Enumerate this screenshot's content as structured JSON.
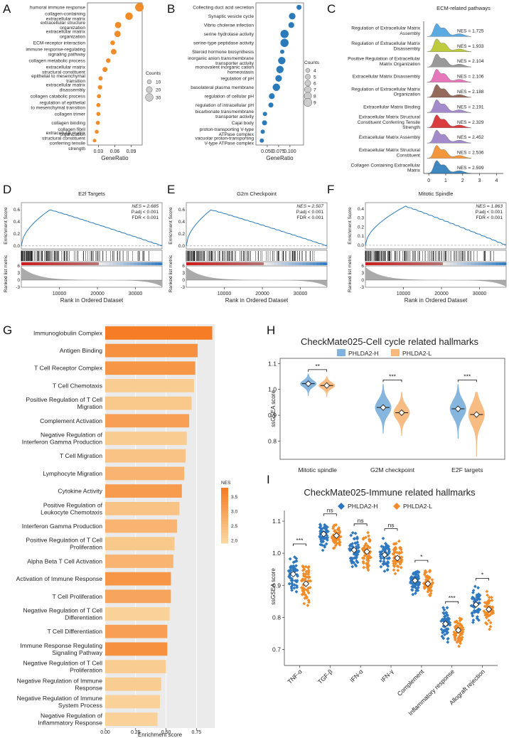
{
  "panel_letters": [
    "A",
    "B",
    "C",
    "D",
    "E",
    "F",
    "G",
    "H",
    "I"
  ],
  "chart_data": [
    {
      "id": "A",
      "type": "scatter",
      "xlabel": "GeneRatio",
      "xticks": [
        0.03,
        0.06,
        0.09
      ],
      "xlim": [
        0.01,
        0.11
      ],
      "legend_title": "Counts",
      "legend_sizes": [
        10,
        20,
        30
      ],
      "legend_labels": [
        "10",
        "20",
        "30"
      ],
      "color": "#f28c28",
      "terms": [
        {
          "label": "humoral immune response",
          "x": 0.105,
          "count": 35
        },
        {
          "label": "collagen-containing extracellular matrix",
          "x": 0.086,
          "count": 29
        },
        {
          "label": "extracellular structure organization",
          "x": 0.066,
          "count": 22
        },
        {
          "label": "extracellular matrix organization",
          "x": 0.065,
          "count": 22
        },
        {
          "label": "ECM-receptor interaction",
          "x": 0.056,
          "count": 12
        },
        {
          "label": "immune response-regulating signaling pathway",
          "x": 0.058,
          "count": 18
        },
        {
          "label": "collagen metabolic process",
          "x": 0.048,
          "count": 12
        },
        {
          "label": "extracellular matrix structural constituent",
          "x": 0.042,
          "count": 14
        },
        {
          "label": "epithelial to mesenchymal transition",
          "x": 0.034,
          "count": 10
        },
        {
          "label": "extracellular matrix disassembly",
          "x": 0.033,
          "count": 11
        },
        {
          "label": "collagen catabolic process",
          "x": 0.031,
          "count": 9
        },
        {
          "label": "regulation of epithelial to mesenchymal transition",
          "x": 0.03,
          "count": 9
        },
        {
          "label": "collagen trimer",
          "x": 0.03,
          "count": 9
        },
        {
          "label": "collagen binding",
          "x": 0.029,
          "count": 9
        },
        {
          "label": "collagen fibril organization",
          "x": 0.027,
          "count": 8
        },
        {
          "label": "extracellular matrix structural constituent conferring tensile strength",
          "x": 0.023,
          "count": 6
        }
      ]
    },
    {
      "id": "B",
      "type": "scatter",
      "xlabel": "GeneRatio",
      "xticks": [
        0.05,
        0.075,
        0.1
      ],
      "xtick_labels": [
        "0.050",
        "0.075",
        "0.100"
      ],
      "xlim": [
        0.025,
        0.13
      ],
      "legend_title": "Counts",
      "legend_sizes": [
        4,
        5,
        6,
        7,
        8,
        9
      ],
      "legend_labels": [
        "4",
        "5",
        "6",
        "7",
        "8",
        "9"
      ],
      "color": "#2b7bba",
      "terms": [
        {
          "label": "Collecting duct acid secretion",
          "x": 0.12,
          "count": 5
        },
        {
          "label": "Synaptic vesicle cycle",
          "x": 0.105,
          "count": 7
        },
        {
          "label": "Vibrio cholerae infection",
          "x": 0.103,
          "count": 6
        },
        {
          "label": "serine hydrolase activity",
          "x": 0.088,
          "count": 9
        },
        {
          "label": "serine-type peptidase activity",
          "x": 0.088,
          "count": 9
        },
        {
          "label": "Steroid hormone biosynthesis",
          "x": 0.083,
          "count": 4
        },
        {
          "label": "inorganic anion transmembrane transporter activity",
          "x": 0.082,
          "count": 8
        },
        {
          "label": "monovalent inorganic cation homeostasis",
          "x": 0.078,
          "count": 8
        },
        {
          "label": "regulation of pH",
          "x": 0.075,
          "count": 7
        },
        {
          "label": "basolateral plasma membrane",
          "x": 0.07,
          "count": 8
        },
        {
          "label": "regulation of cellular pH",
          "x": 0.06,
          "count": 6
        },
        {
          "label": "regulation of intracellular pH",
          "x": 0.058,
          "count": 5
        },
        {
          "label": "bicarbonate transmembrane transporter activity",
          "x": 0.045,
          "count": 4
        },
        {
          "label": "Cajal body",
          "x": 0.044,
          "count": 5
        },
        {
          "label": "proton-transporting V-type ATPase complex",
          "x": 0.04,
          "count": 4
        },
        {
          "label": "vacuolar proton-transporting V-type ATPase complex",
          "x": 0.038,
          "count": 4
        }
      ]
    },
    {
      "id": "C",
      "type": "ridgeline",
      "title": "ECM-related pathways",
      "xticks": [
        0,
        1,
        2,
        3,
        4
      ],
      "xlim": [
        -0.3,
        4.4
      ],
      "ridges": [
        {
          "label": "Regulation of Extracellular Matrix Assembly",
          "nes": "1.725",
          "color": "#4aa3df"
        },
        {
          "label": "Regulation of Extracellular Matrix Disassembly",
          "nes": "1.933",
          "color": "#b8c62a"
        },
        {
          "label": "Positive Regulation of Extracellular Matrix Organization",
          "nes": "2.104",
          "color": "#8e8e8e"
        },
        {
          "label": "Extracellular Matrix Disassembly",
          "nes": "2.106",
          "color": "#e469b4"
        },
        {
          "label": "Regulation of Extracellular Matrix Organization",
          "nes": "2.188",
          "color": "#8b5a4a"
        },
        {
          "label": "Extracellular Matrix Binding",
          "nes": "2.191",
          "color": "#9a7fc6"
        },
        {
          "label": "Extracellular Matrix Structural Constituent Conferring Tensile Strength",
          "nes": "2.329",
          "color": "#d8282c"
        },
        {
          "label": "Extracellular Matrix Assembly",
          "nes": "2.452",
          "color": "#9a7fc6"
        },
        {
          "label": "Extracellular Matrix Structural Constituent",
          "nes": "2.536",
          "color": "#f28c28"
        },
        {
          "label": "Collagen Containing Extracellular Matrix",
          "nes": "2.599",
          "color": "#2b7bba"
        }
      ]
    },
    {
      "id": "D",
      "type": "gsea",
      "title": "E2f Targets",
      "nes": "NES = 2.685",
      "padj": "P.adj < 0.001",
      "fdr": "FDR < 0.001",
      "ylabel_top": "Enrichment Score",
      "ylabel_bottom": "Ranked list metric",
      "xlabel": "Rank in Ordered Dataset",
      "xticks": [
        10000,
        20000,
        30000
      ],
      "xmax": 37000,
      "yticks": [
        0.0,
        0.2,
        0.4,
        0.6
      ],
      "ylim": [
        -0.05,
        0.72
      ],
      "peak_rank": 7500,
      "peak": 0.6
    },
    {
      "id": "E",
      "type": "gsea",
      "title": "G2m Checkpoint",
      "nes": "NES = 2.507",
      "padj": "P.adj < 0.001",
      "fdr": "FDR < 0.001",
      "ylabel_top": "Enrichment Score",
      "ylabel_bottom": "Ranked list metric",
      "xlabel": "Rank in Ordered Dataset",
      "xticks": [
        10000,
        20000,
        30000
      ],
      "xmax": 37000,
      "yticks": [
        0.0,
        0.2,
        0.4,
        0.6
      ],
      "ylim": [
        -0.05,
        0.72
      ],
      "peak_rank": 6500,
      "peak": 0.6
    },
    {
      "id": "F",
      "type": "gsea",
      "title": "Mitotic Spindle",
      "nes": "NES = 1.863",
      "padj": "P.adj < 0.001",
      "fdr": "FDR < 0.001",
      "ylabel_top": "Enrichment Score",
      "ylabel_bottom": "Ranked list metric",
      "xlabel": "Rank in Ordered Dataset",
      "xticks": [
        10000,
        20000,
        30000
      ],
      "xmax": 37000,
      "yticks": [
        0.0,
        0.1,
        0.2,
        0.3,
        0.4
      ],
      "ylim": [
        -0.04,
        0.47
      ],
      "peak_rank": 10500,
      "peak": 0.43
    },
    {
      "id": "G",
      "type": "bar",
      "xlabel": "Enrichment score",
      "xticks": [
        0,
        0.25,
        0.5,
        0.75
      ],
      "xtick_labels": [
        "0.00",
        "0.25",
        "0.50",
        "0.75"
      ],
      "xlim": [
        0,
        0.9
      ],
      "legend_title": "NES",
      "legend_ticks": [
        2.0,
        2.5,
        3.0,
        3.5
      ],
      "legend_labels": [
        "2.0",
        "2.5",
        "3.0",
        "3.5"
      ],
      "bars": [
        {
          "label": "Immunoglobulin Complex",
          "value": 0.88,
          "nes": 3.7
        },
        {
          "label": "Antigen Binding",
          "value": 0.76,
          "nes": 3.3
        },
        {
          "label": "T Cell Receptor Complex",
          "value": 0.74,
          "nes": 3.2
        },
        {
          "label": "T Cell Chemotaxis",
          "value": 0.73,
          "nes": 2.1
        },
        {
          "label": "Positive Regulation of T Cell Migration",
          "value": 0.71,
          "nes": 2.2
        },
        {
          "label": "Complement Activation",
          "value": 0.69,
          "nes": 3.0
        },
        {
          "label": "Negative Regulation of Interferon Gamma Production",
          "value": 0.67,
          "nes": 2.1
        },
        {
          "label": "T Cell Migration",
          "value": 0.66,
          "nes": 2.3
        },
        {
          "label": "Lymphocyte Migration",
          "value": 0.65,
          "nes": 2.6
        },
        {
          "label": "Cytokine Activity",
          "value": 0.63,
          "nes": 3.1
        },
        {
          "label": "Positive Regulation of Leukocyte Chemotaxis",
          "value": 0.61,
          "nes": 2.3
        },
        {
          "label": "Interferon Gamma Production",
          "value": 0.59,
          "nes": 2.6
        },
        {
          "label": "Positive Regulation of T Cell Proliferation",
          "value": 0.57,
          "nes": 2.2
        },
        {
          "label": "Alpha Beta T Cell Activation",
          "value": 0.56,
          "nes": 2.6
        },
        {
          "label": "Activation of Immune Response",
          "value": 0.54,
          "nes": 3.2
        },
        {
          "label": "T Cell Proliferation",
          "value": 0.54,
          "nes": 2.9
        },
        {
          "label": "Negative Regulation of T Cell Differentiation",
          "value": 0.53,
          "nes": 2.0
        },
        {
          "label": "T Cell Differentiation",
          "value": 0.51,
          "nes": 3.0
        },
        {
          "label": "Immune Response Regulating Signaling Pathway",
          "value": 0.51,
          "nes": 3.3
        },
        {
          "label": "Negative Regulation of T Cell Proliferation",
          "value": 0.5,
          "nes": 2.1
        },
        {
          "label": "Negative Regulation of Immune Response",
          "value": 0.46,
          "nes": 2.1
        },
        {
          "label": "Negative Regulation of Immune System Process",
          "value": 0.45,
          "nes": 2.0
        },
        {
          "label": "Negative Regulation of Inflammatory Response",
          "value": 0.43,
          "nes": 2.0
        }
      ]
    },
    {
      "id": "H",
      "type": "violin",
      "title": "CheckMate025-Cell cycle related hallmarks",
      "ylabel": "ssGSEA score",
      "yticks": [
        0.8,
        0.9,
        1.0,
        1.1
      ],
      "ylim": [
        0.73,
        1.12
      ],
      "series": [
        {
          "name": "PHLDA2-H",
          "color": "#7fb2dc",
          "medians": [
            1.022,
            0.93,
            0.925
          ],
          "ranges": [
            [
              0.975,
              1.06
            ],
            [
              0.83,
              1.02
            ],
            [
              0.81,
              1.02
            ]
          ]
        },
        {
          "name": "PHLDA2-L",
          "color": "#f7b87d",
          "medians": [
            1.015,
            0.91,
            0.903
          ],
          "ranges": [
            [
              0.97,
              1.05
            ],
            [
              0.82,
              0.99
            ],
            [
              0.74,
              0.99
            ]
          ]
        }
      ],
      "categories": [
        "Mitotic spindle",
        "G2M checkpoint",
        "E2F targets"
      ],
      "significance": [
        "**",
        "***",
        "***"
      ]
    },
    {
      "id": "I",
      "type": "scatter",
      "title": "CheckMate025-Immune related hallmarks",
      "ylabel": "ssGSEA score",
      "yticks": [
        0.7,
        0.8,
        0.9,
        1.0,
        1.1
      ],
      "ylim": [
        0.65,
        1.16
      ],
      "series": [
        {
          "name": "PHLDA2-H",
          "color": "#2f78c0",
          "medians": [
            0.935,
            1.06,
            1.01,
            0.995,
            0.915,
            0.78,
            0.84
          ],
          "spread": [
            0.07,
            0.045,
            0.06,
            0.06,
            0.045,
            0.05,
            0.06
          ]
        },
        {
          "name": "PHLDA2-L",
          "color": "#f28c28",
          "medians": [
            0.905,
            1.055,
            1.005,
            0.985,
            0.905,
            0.76,
            0.825
          ],
          "spread": [
            0.07,
            0.045,
            0.06,
            0.06,
            0.045,
            0.05,
            0.06
          ]
        }
      ],
      "categories": [
        "TNF-α",
        "TGF-β",
        "IFN-α",
        "IFN-γ",
        "Complement",
        "Inflammatory response",
        "Allograft rejection"
      ],
      "significance": [
        "***",
        "ns",
        "ns",
        "ns",
        "*",
        "***",
        "*"
      ]
    }
  ]
}
